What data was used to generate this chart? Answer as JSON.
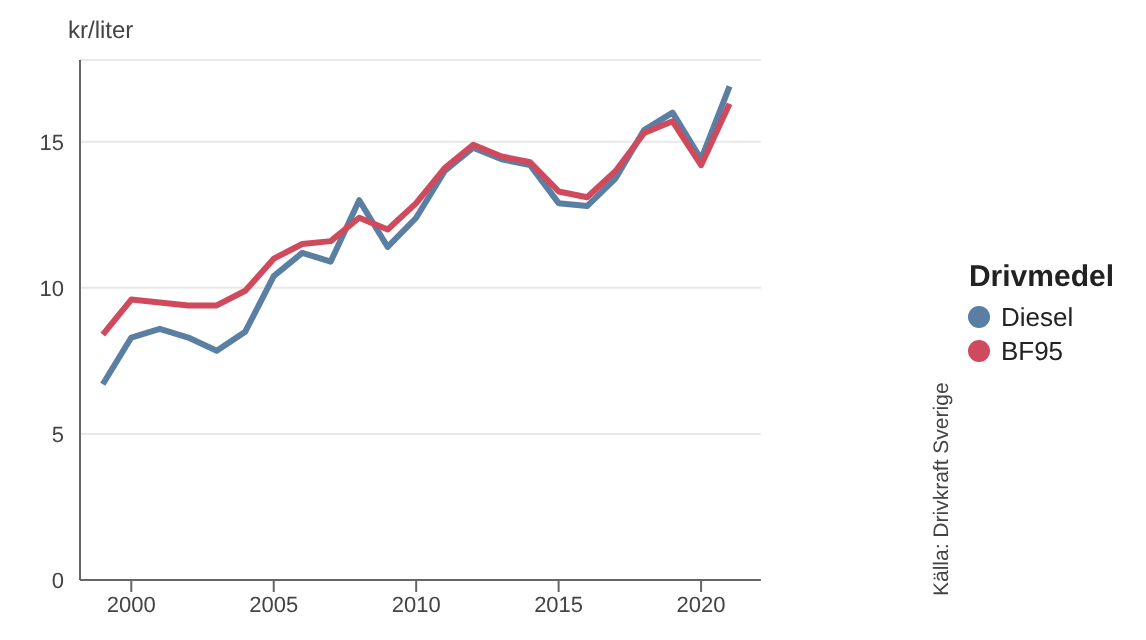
{
  "chart_data": {
    "type": "line",
    "ylabel": "kr/liter",
    "legend_title": "Drivmedel",
    "annotations": [
      "Källa: Drivkraft Sverige"
    ],
    "x": [
      1999,
      2000,
      2001,
      2002,
      2003,
      2004,
      2005,
      2006,
      2007,
      2008,
      2009,
      2010,
      2011,
      2012,
      2013,
      2014,
      2015,
      2016,
      2017,
      2018,
      2019,
      2020,
      2021
    ],
    "series": [
      {
        "name": "Diesel",
        "color": "#5a7fa3",
        "values": [
          6.7,
          8.3,
          8.6,
          8.3,
          7.85,
          8.5,
          10.4,
          11.2,
          10.9,
          13.0,
          11.4,
          12.4,
          14.0,
          14.8,
          14.4,
          14.2,
          12.9,
          12.8,
          13.75,
          15.4,
          16.0,
          14.4,
          16.9
        ]
      },
      {
        "name": "BF95",
        "color": "#d04a5e",
        "values": [
          8.4,
          9.6,
          9.5,
          9.4,
          9.4,
          9.9,
          11.0,
          11.5,
          11.6,
          12.4,
          12.0,
          12.9,
          14.1,
          14.9,
          14.5,
          14.3,
          13.3,
          13.1,
          14.0,
          15.3,
          15.7,
          14.2,
          16.3
        ]
      }
    ],
    "xlim": [
      1998.2,
      2022.1
    ],
    "xticks": [
      2000,
      2005,
      2010,
      2015,
      2020
    ],
    "ylim": [
      0,
      17.8
    ],
    "yticks": [
      0,
      5,
      10,
      15
    ],
    "grid": "y",
    "legend": "right",
    "marker": "none",
    "line_style": "solid"
  }
}
